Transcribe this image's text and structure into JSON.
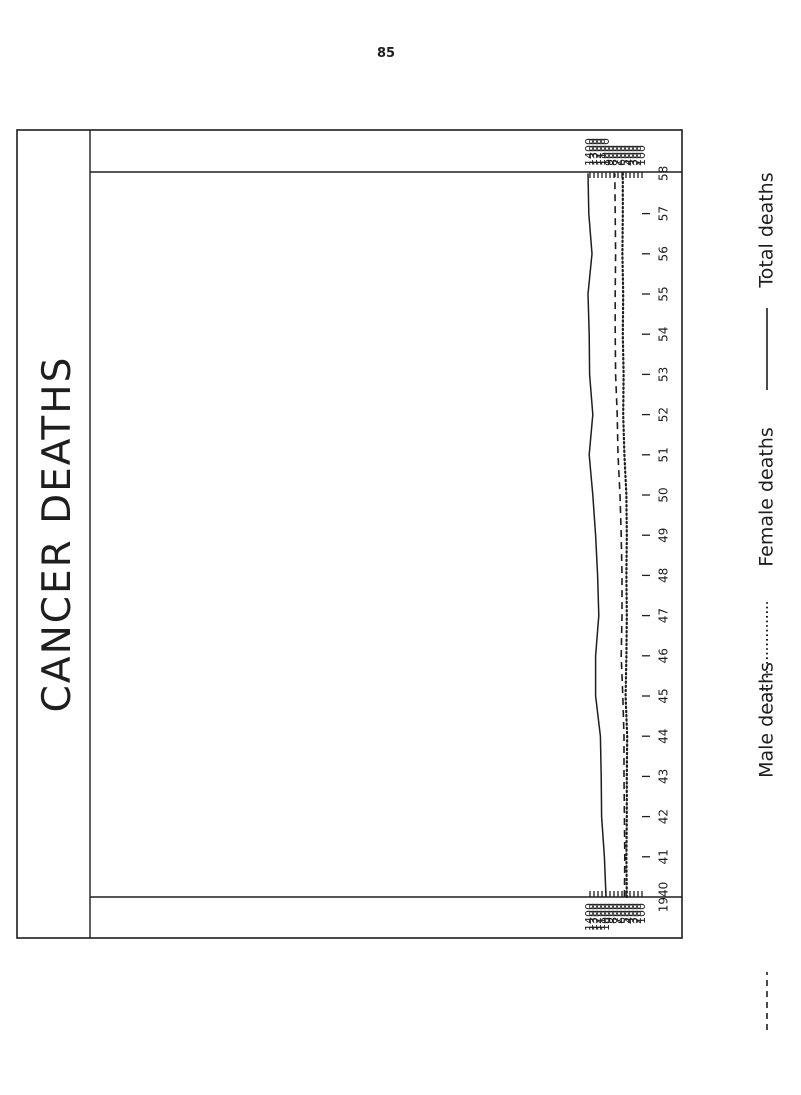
{
  "page_number": "85",
  "title": "CANCER DEATHS",
  "legend": {
    "male": "Male deaths",
    "female": "Female deaths",
    "total": "Total deaths"
  },
  "colors": {
    "ink": "#1e1e1e",
    "background": "#ffffff"
  },
  "chart_data": {
    "type": "line",
    "title": "CANCER DEATHS",
    "x_label": "",
    "y_label": "",
    "x": [
      1940,
      1941,
      1942,
      1943,
      1944,
      1945,
      1946,
      1947,
      1948,
      1949,
      1950,
      1951,
      1952,
      1953,
      1954,
      1955,
      1956,
      1957,
      1958
    ],
    "x_tick_labels": [
      "1940",
      "41",
      "42",
      "43",
      "44",
      "45",
      "46",
      "47",
      "48",
      "49",
      "50",
      "51",
      "52",
      "53",
      "54",
      "55",
      "56",
      "57",
      "58"
    ],
    "y_ticks": [
      100,
      200,
      300,
      400,
      500,
      600,
      700,
      800,
      900,
      1000,
      1100,
      1200,
      1300,
      1400
    ],
    "y_tick_labels": [
      "100",
      "200",
      "300",
      "400",
      "500",
      "600",
      "700",
      "800",
      "900",
      "1000",
      "1100",
      "1200",
      "1300",
      "1400"
    ],
    "ylim": [
      0,
      1500
    ],
    "orientation": "years along the vertical axis (1940 at the bottom), deaths along the horizontal axis increasing to the left",
    "legend_position": "right",
    "series": [
      {
        "name": "Total deaths",
        "style": "solid",
        "values": [
          1000,
          1040,
          1110,
          1120,
          1140,
          1260,
          1260,
          1180,
          1210,
          1260,
          1330,
          1420,
          1330,
          1410,
          1420,
          1450,
          1350,
          1430,
          1450
        ]
      },
      {
        "name": "Male deaths",
        "style": "dashed",
        "values": [
          540,
          530,
          540,
          550,
          550,
          580,
          620,
          600,
          600,
          620,
          650,
          700,
          720,
          760,
          770,
          770,
          760,
          770,
          780
        ]
      },
      {
        "name": "Female deaths",
        "style": "dotted",
        "values": [
          480,
          490,
          480,
          480,
          470,
          510,
          490,
          480,
          490,
          480,
          490,
          540,
          570,
          560,
          580,
          570,
          590,
          580,
          580
        ]
      }
    ]
  }
}
